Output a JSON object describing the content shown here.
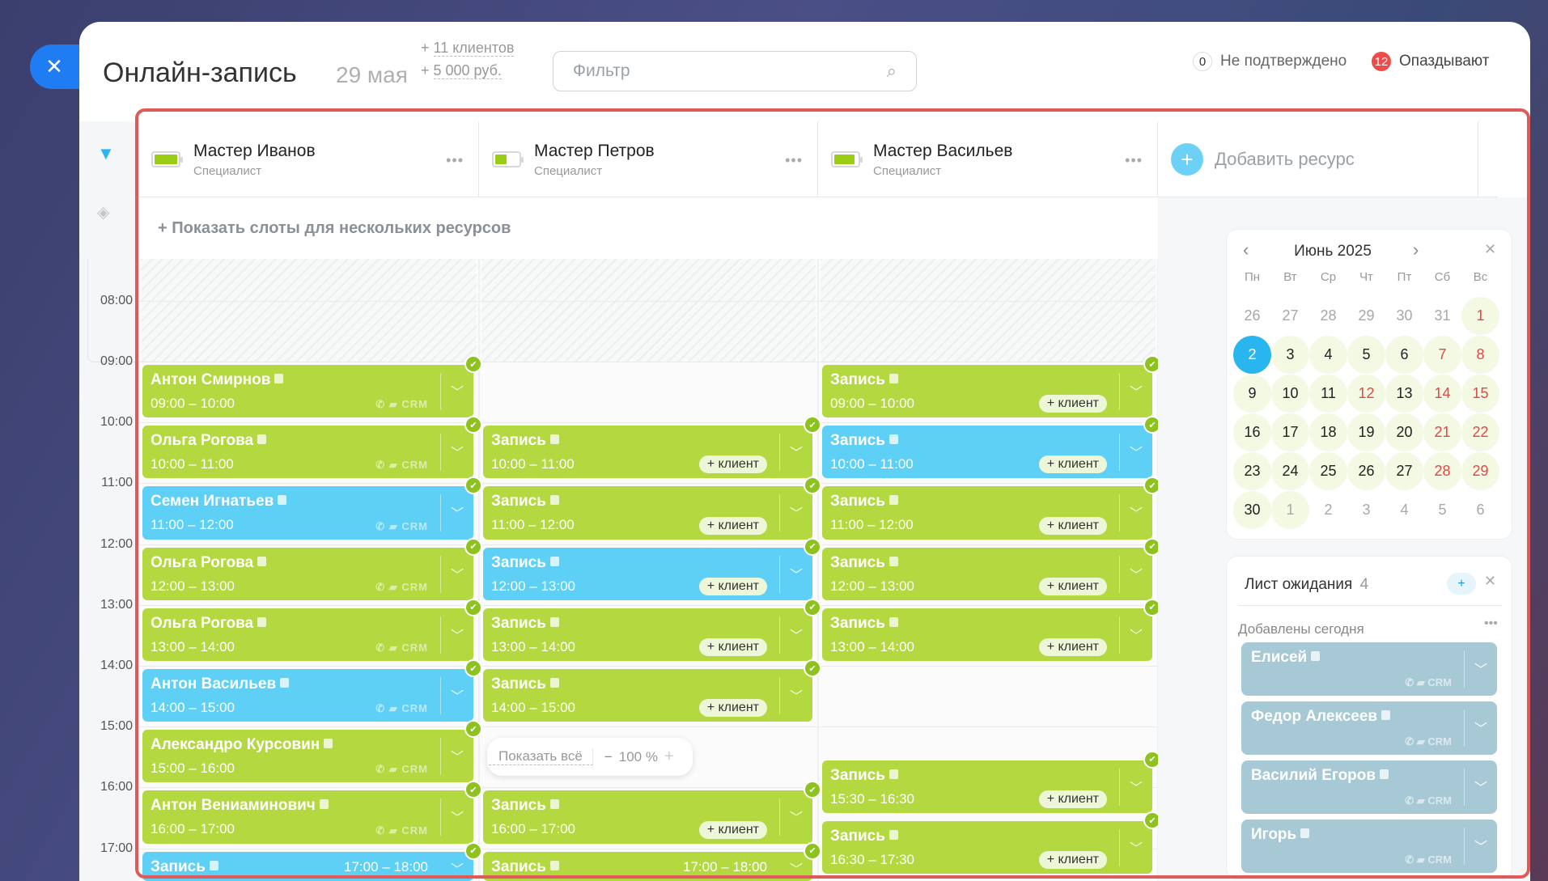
{
  "header": {
    "close_icon": "close-icon",
    "title": "Онлайн-запись",
    "date": "29 мая",
    "stat_clients": "+ 11 клиентов",
    "stat_money": "+ 5 000 руб.",
    "filter_placeholder": "Фильтр",
    "unconfirmed_count": "0",
    "unconfirmed_label": "Не подтверждено",
    "late_count": "12",
    "late_label": "Опаздывают"
  },
  "resources": [
    {
      "name": "Мастер Иванов",
      "role": "Специалист",
      "load": 1.0
    },
    {
      "name": "Мастер Петров",
      "role": "Специалист",
      "load": 0.5
    },
    {
      "name": "Мастер Васильев",
      "role": "Специалист",
      "load": 0.9
    }
  ],
  "add_resource": "Добавить ресурс",
  "show_slots": "+ Показать слоты для нескольких ресурсов",
  "times": [
    "08:00",
    "09:00",
    "10:00",
    "11:00",
    "12:00",
    "13:00",
    "14:00",
    "15:00",
    "16:00",
    "17:00"
  ],
  "colors": {
    "green": "#b3d840",
    "blue": "#5fd0f5",
    "waitlist": "#a6c9d5",
    "accent_red": "#e05a5a",
    "selected": "#29b6ef"
  },
  "add_client": "+ клиент",
  "crm": "CRM",
  "columns": [
    [
      {
        "title": "Антон Смирнов",
        "time": "09:00 – 10:00",
        "color": "green",
        "client": true
      },
      {
        "title": "Ольга Рогова",
        "time": "10:00 – 11:00",
        "color": "green",
        "client": true
      },
      {
        "title": "Семен Игнатьев",
        "time": "11:00 – 12:00",
        "color": "blue",
        "client": true
      },
      {
        "title": "Ольга Рогова",
        "time": "12:00 – 13:00",
        "color": "green",
        "client": true
      },
      {
        "title": "Ольга Рогова",
        "time": "13:00 – 14:00",
        "color": "green",
        "client": true
      },
      {
        "title": "Антон Васильев",
        "time": "14:00 – 15:00",
        "color": "blue",
        "client": true
      },
      {
        "title": "Александро Курсовин",
        "time": "15:00 – 16:00",
        "color": "green",
        "client": true
      },
      {
        "title": "Антон Вениаминович",
        "time": "16:00 – 17:00",
        "color": "green",
        "client": true
      },
      {
        "title": "Запись",
        "time": "17:00 – 18:00",
        "color": "blue",
        "client": false
      }
    ],
    [
      {
        "title": "Запись",
        "time": "10:00 – 11:00",
        "color": "green",
        "client": false
      },
      {
        "title": "Запись",
        "time": "11:00 – 12:00",
        "color": "green",
        "client": false
      },
      {
        "title": "Запись",
        "time": "12:00 – 13:00",
        "color": "blue",
        "client": false
      },
      {
        "title": "Запись",
        "time": "13:00 – 14:00",
        "color": "green",
        "client": false
      },
      {
        "title": "Запись",
        "time": "14:00 – 15:00",
        "color": "green",
        "client": false
      },
      {
        "title": "Запись",
        "time": "16:00 – 17:00",
        "color": "green",
        "client": false
      },
      {
        "title": "Запись",
        "time": "17:00 – 18:00",
        "color": "green",
        "client": false
      }
    ],
    [
      {
        "title": "Запись",
        "time": "09:00 – 10:00",
        "color": "green",
        "client": false
      },
      {
        "title": "Запись",
        "time": "10:00 – 11:00",
        "color": "blue",
        "client": false
      },
      {
        "title": "Запись",
        "time": "11:00 – 12:00",
        "color": "green",
        "client": false
      },
      {
        "title": "Запись",
        "time": "12:00 – 13:00",
        "color": "green",
        "client": false
      },
      {
        "title": "Запись",
        "time": "13:00 – 14:00",
        "color": "green",
        "client": false
      },
      {
        "title": "Запись",
        "time": "15:30 – 16:30",
        "color": "green",
        "client": false
      },
      {
        "title": "Запись",
        "time": "16:30 – 17:30",
        "color": "green",
        "client": false
      }
    ]
  ],
  "calendar": {
    "month": "Июнь 2025",
    "weekdays": [
      "Пн",
      "Вт",
      "Ср",
      "Чт",
      "Пт",
      "Сб",
      "Вс"
    ],
    "days": [
      {
        "d": "26",
        "muted": true
      },
      {
        "d": "27",
        "muted": true
      },
      {
        "d": "28",
        "muted": true
      },
      {
        "d": "29",
        "muted": true
      },
      {
        "d": "30",
        "muted": true
      },
      {
        "d": "31",
        "muted": true
      },
      {
        "d": "1",
        "avail": true,
        "red": true
      },
      {
        "d": "2",
        "selected": true
      },
      {
        "d": "3",
        "avail": true
      },
      {
        "d": "4",
        "avail": true
      },
      {
        "d": "5",
        "avail": true
      },
      {
        "d": "6",
        "avail": true
      },
      {
        "d": "7",
        "avail": true,
        "red": true
      },
      {
        "d": "8",
        "avail": true,
        "red": true
      },
      {
        "d": "9",
        "avail": true
      },
      {
        "d": "10",
        "avail": true
      },
      {
        "d": "11",
        "avail": true
      },
      {
        "d": "12",
        "avail": true,
        "red": true
      },
      {
        "d": "13",
        "avail": true
      },
      {
        "d": "14",
        "avail": true,
        "red": true
      },
      {
        "d": "15",
        "avail": true,
        "red": true
      },
      {
        "d": "16",
        "avail": true
      },
      {
        "d": "17",
        "avail": true
      },
      {
        "d": "18",
        "avail": true
      },
      {
        "d": "19",
        "avail": true
      },
      {
        "d": "20",
        "avail": true
      },
      {
        "d": "21",
        "avail": true,
        "red": true
      },
      {
        "d": "22",
        "avail": true,
        "red": true
      },
      {
        "d": "23",
        "avail": true
      },
      {
        "d": "24",
        "avail": true
      },
      {
        "d": "25",
        "avail": true
      },
      {
        "d": "26",
        "avail": true
      },
      {
        "d": "27",
        "avail": true
      },
      {
        "d": "28",
        "avail": true,
        "red": true
      },
      {
        "d": "29",
        "avail": true,
        "red": true
      },
      {
        "d": "30",
        "avail": true
      },
      {
        "d": "1",
        "muted": true,
        "avail": true
      },
      {
        "d": "2",
        "muted": true
      },
      {
        "d": "3",
        "muted": true
      },
      {
        "d": "4",
        "muted": true
      },
      {
        "d": "5",
        "muted": true
      },
      {
        "d": "6",
        "muted": true
      }
    ]
  },
  "waitlist": {
    "title": "Лист ожидания",
    "count": "4",
    "section": "Добавлены сегодня",
    "items": [
      "Елисей",
      "Федор Алексеев",
      "Василий Егоров",
      "Игорь"
    ]
  },
  "zoom": {
    "show_all": "Показать всё",
    "minus": "−",
    "level": "100 %",
    "plus": "+"
  }
}
